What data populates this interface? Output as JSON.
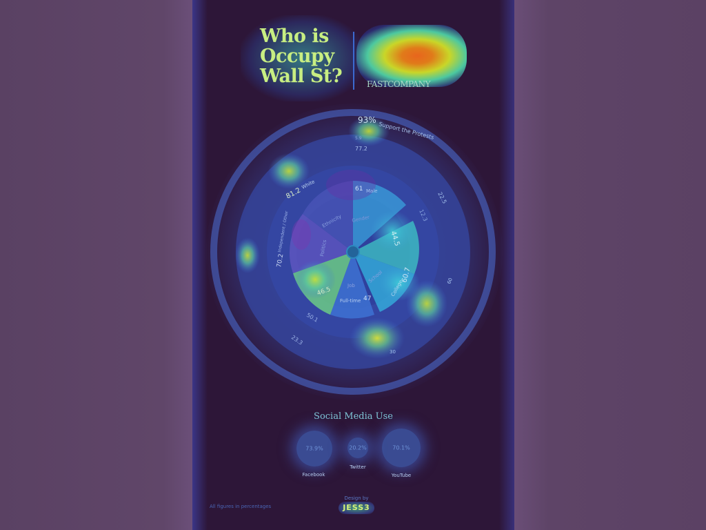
{
  "title_lines": [
    "Who is",
    "Occupy",
    "Wall St?"
  ],
  "brand": "FASTCOMPANY",
  "wheel": {
    "support_percent": "93%",
    "support_label": "Support the Protests",
    "small_values": [
      "5.9",
      "77.2"
    ],
    "center_labels": {
      "ethnicity": "Ethnicity",
      "gender": "Gender",
      "politics": "Politics",
      "school": "School",
      "job": "Job"
    },
    "segments": {
      "male_value": "61",
      "male_label": "Male",
      "white_value": "81.2",
      "white_label": "White",
      "independent_value": "70.2",
      "independent_label": "Independent / Other",
      "value_46_5": "46.5",
      "fulltime_label": "Full-time",
      "fulltime_value": "47",
      "college_label": "College",
      "college_value": "60.7",
      "value_44_5": "44.5",
      "value_22_5": "22.5",
      "value_12_3": "12.3",
      "value_50_1": "50.1",
      "value_23_3": "23.3",
      "value_60": "60",
      "value_30": "30"
    }
  },
  "social": {
    "title": "Social Media Use",
    "items": [
      {
        "label": "Facebook",
        "value": "73.9%"
      },
      {
        "label": "Twitter",
        "value": "20.2%"
      },
      {
        "label": "YouTube",
        "value": "70.1%"
      }
    ]
  },
  "footer": {
    "note": "All figures in percentages",
    "design_by": "Design by",
    "designer_logo": "JESS3"
  },
  "colors": {
    "background": "#2d1638",
    "title": "#c8ee82",
    "accent_orange": "#e8651d",
    "wheel_blue": "#3f6fd8"
  }
}
